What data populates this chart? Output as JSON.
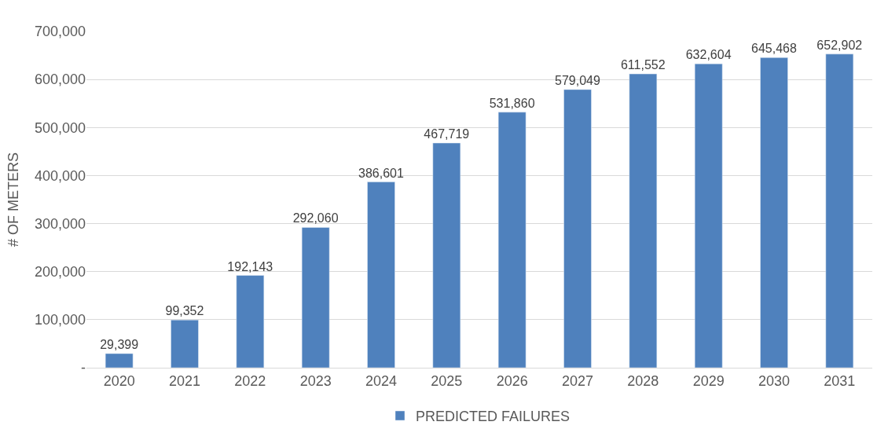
{
  "chart_data": {
    "type": "bar",
    "ylabel": "# OF METERS",
    "categories": [
      "2020",
      "2021",
      "2022",
      "2023",
      "2024",
      "2025",
      "2026",
      "2027",
      "2028",
      "2029",
      "2030",
      "2031"
    ],
    "series": [
      {
        "name": "PREDICTED FAILURES",
        "color": "#4f81bd",
        "values": [
          29399,
          99352,
          192143,
          292060,
          386601,
          467719,
          531860,
          579049,
          611552,
          632604,
          645468,
          652902
        ],
        "value_labels": [
          "29,399",
          "99,352",
          "192,143",
          "292,060",
          "386,601",
          "467,719",
          "531,860",
          "579,049",
          "611,552",
          "632,604",
          "645,468",
          "652,902"
        ]
      }
    ],
    "ylim": [
      0,
      700000
    ],
    "yticks": [
      {
        "value": 0,
        "label": "-"
      },
      {
        "value": 100000,
        "label": "100,000"
      },
      {
        "value": 200000,
        "label": "200,000"
      },
      {
        "value": 300000,
        "label": "300,000"
      },
      {
        "value": 400000,
        "label": "400,000"
      },
      {
        "value": 500000,
        "label": "500,000"
      },
      {
        "value": 600000,
        "label": "600,000"
      },
      {
        "value": 700000,
        "label": "700,000"
      }
    ],
    "grid": "y",
    "legend": "bottom"
  }
}
